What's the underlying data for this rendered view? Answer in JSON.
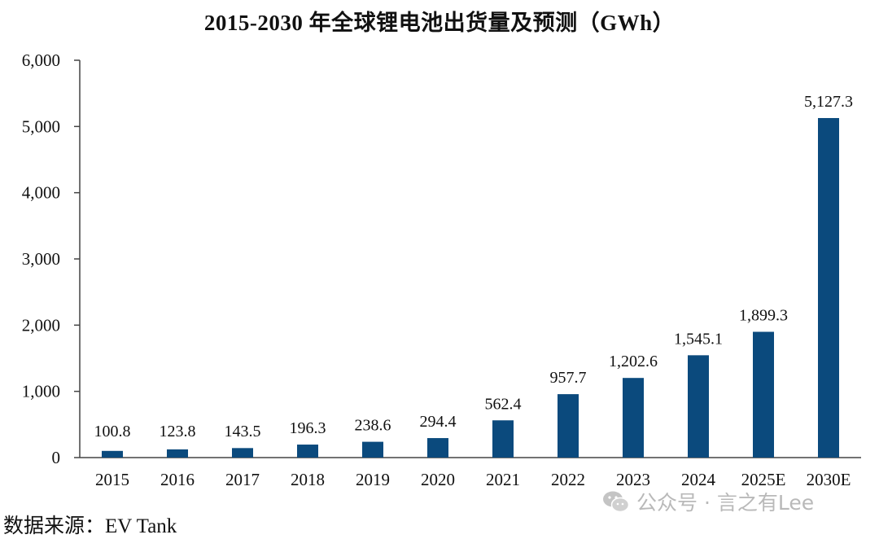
{
  "chart_data": {
    "type": "bar",
    "title": "2015-2030 年全球锂电池出货量及预测（GWh）",
    "categories": [
      "2015",
      "2016",
      "2017",
      "2018",
      "2019",
      "2020",
      "2021",
      "2022",
      "2023",
      "2024",
      "2025E",
      "2030E"
    ],
    "values": [
      100.8,
      123.8,
      143.5,
      196.3,
      238.6,
      294.4,
      562.4,
      957.7,
      1202.6,
      1545.1,
      1899.3,
      5127.3
    ],
    "data_labels": [
      "100.8",
      "123.8",
      "143.5",
      "196.3",
      "238.6",
      "294.4",
      "562.4",
      "957.7",
      "1,202.6",
      "1,545.1",
      "1,899.3",
      "5,127.3"
    ],
    "y_ticks": [
      0,
      1000,
      2000,
      3000,
      4000,
      5000,
      6000
    ],
    "y_tick_labels": [
      "0",
      "1,000",
      "2,000",
      "3,000",
      "4,000",
      "5,000",
      "6,000"
    ],
    "ylim": [
      0,
      6000
    ],
    "xlabel": "",
    "ylabel": "",
    "grid": false,
    "bar_color": "#0b4a7d"
  },
  "source": "数据来源：EV Tank",
  "watermark": {
    "text": "公众号 · 言之有Lee",
    "icon": "wechat-icon"
  }
}
